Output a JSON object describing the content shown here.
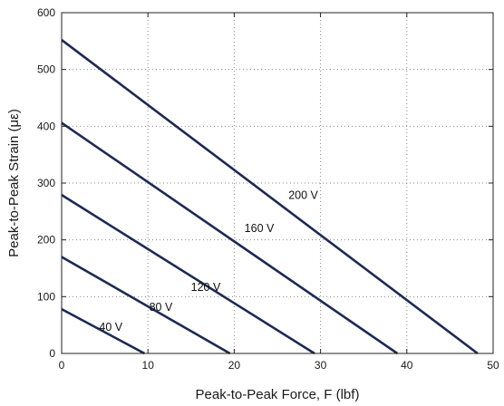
{
  "chart_data": {
    "type": "line",
    "title": "",
    "xlabel": "Peak-to-Peak Force, F (lbf)",
    "ylabel": "Peak-to-Peak Strain (με)",
    "xlim": [
      0,
      50
    ],
    "ylim": [
      0,
      600
    ],
    "xticks": [
      "0",
      "10",
      "20",
      "30",
      "40",
      "50"
    ],
    "yticks": [
      "0",
      "100",
      "200",
      "300",
      "400",
      "500",
      "600"
    ],
    "grid": true,
    "line_color": "#1b2a55",
    "series": [
      {
        "name": "40 V",
        "x": [
          0,
          9.6
        ],
        "y": [
          78,
          0
        ],
        "label_at": [
          5.7,
          40
        ]
      },
      {
        "name": "80 V",
        "x": [
          0,
          19.5
        ],
        "y": [
          170,
          0
        ],
        "label_at": [
          11.5,
          75
        ]
      },
      {
        "name": "120 V",
        "x": [
          0,
          29.3
        ],
        "y": [
          279,
          0
        ],
        "label_at": [
          16.7,
          110
        ]
      },
      {
        "name": "160 V",
        "x": [
          0,
          38.9
        ],
        "y": [
          406,
          0
        ],
        "label_at": [
          22.9,
          214
        ]
      },
      {
        "name": "200 V",
        "x": [
          0,
          48.2
        ],
        "y": [
          552,
          0
        ],
        "label_at": [
          28.0,
          272
        ]
      }
    ]
  }
}
